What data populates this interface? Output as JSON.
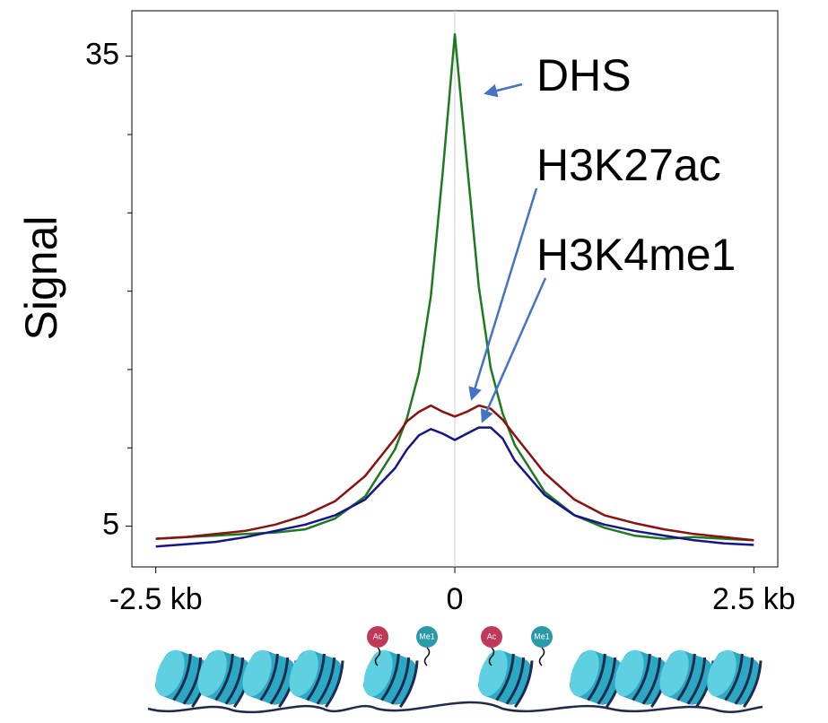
{
  "chart_data": {
    "type": "line",
    "y_label": "Signal",
    "x": [
      -2.5,
      -2.25,
      -2,
      -1.75,
      -1.5,
      -1.25,
      -1,
      -0.75,
      -0.5,
      -0.4,
      -0.3,
      -0.2,
      -0.1,
      0,
      0.1,
      0.2,
      0.3,
      0.4,
      0.5,
      0.75,
      1,
      1.25,
      1.5,
      1.75,
      2,
      2.25,
      2.5
    ],
    "series": [
      {
        "name": "DHS",
        "color": "#1e7a1e",
        "values": [
          4.2,
          4.3,
          4.4,
          4.5,
          4.6,
          4.8,
          5.5,
          6.9,
          9.9,
          11.9,
          14.8,
          19.7,
          27.7,
          36.4,
          28.3,
          20.3,
          15.1,
          12.2,
          10.2,
          7.2,
          5.7,
          4.9,
          4.4,
          4.2,
          4.3,
          4.2,
          4.1
        ]
      },
      {
        "name": "H3K27ac",
        "color": "#8b1010",
        "values": [
          4.2,
          4.3,
          4.5,
          4.7,
          5.1,
          5.7,
          6.6,
          8.2,
          10.6,
          11.7,
          12.3,
          12.7,
          12.3,
          12.0,
          12.3,
          12.7,
          12.5,
          11.8,
          10.8,
          8.4,
          6.7,
          5.7,
          5.2,
          4.8,
          4.5,
          4.3,
          4.1
        ]
      },
      {
        "name": "H3K4me1",
        "color": "#14148c",
        "values": [
          3.7,
          3.85,
          4.0,
          4.3,
          4.7,
          5.1,
          5.7,
          6.7,
          8.7,
          9.9,
          10.8,
          11.2,
          10.9,
          10.5,
          10.9,
          11.3,
          11.3,
          10.6,
          9.2,
          7.0,
          5.7,
          5.1,
          4.7,
          4.4,
          4.1,
          3.9,
          3.8
        ]
      }
    ],
    "xlim": [
      -2.7,
      2.7
    ],
    "xticks": [
      {
        "value": -2.5,
        "label": "-2.5 kb"
      },
      0,
      {
        "value": 2.5,
        "label": "2.5 kb"
      }
    ],
    "ylim": [
      2.4,
      37.9
    ],
    "yticks": [
      5,
      35
    ],
    "y_minor_ticks": [
      10,
      15,
      20,
      25,
      30
    ],
    "reference_line_x": 0,
    "annotations": [
      "DHS",
      "H3K27ac",
      "H3K4me1"
    ],
    "illustration_labels": [
      "Ac",
      "Me1",
      "Ac",
      "Me1"
    ]
  }
}
